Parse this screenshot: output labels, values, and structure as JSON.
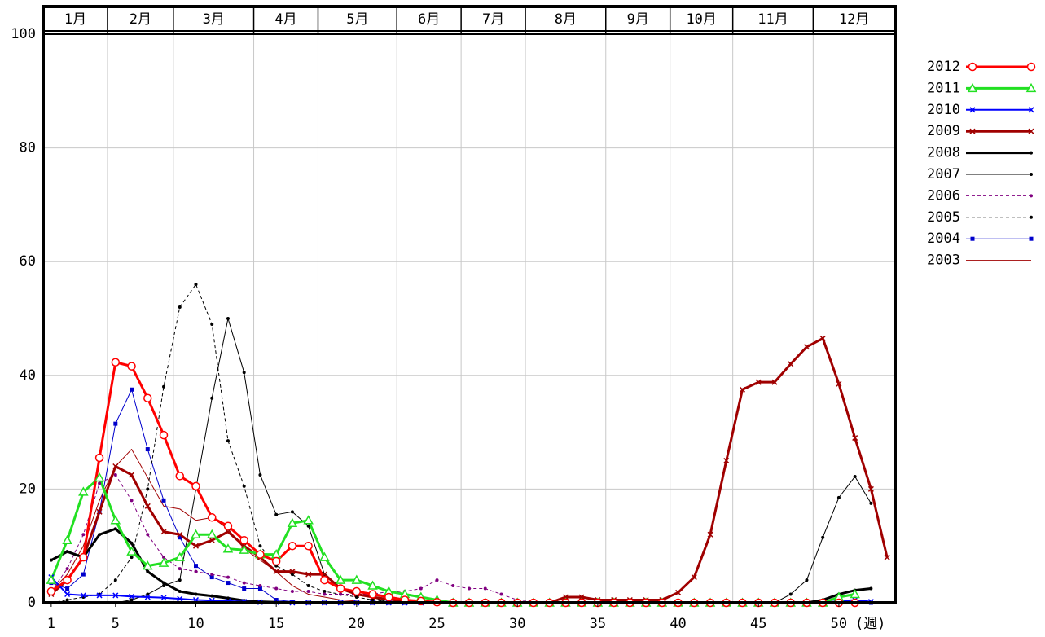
{
  "chart_data": {
    "type": "line",
    "x": [
      1,
      2,
      3,
      4,
      5,
      6,
      7,
      8,
      9,
      10,
      11,
      12,
      13,
      14,
      15,
      16,
      17,
      18,
      19,
      20,
      21,
      22,
      23,
      24,
      25,
      26,
      27,
      28,
      29,
      30,
      31,
      32,
      33,
      34,
      35,
      36,
      37,
      38,
      39,
      40,
      41,
      42,
      43,
      44,
      45,
      46,
      47,
      48,
      49,
      50,
      51,
      52,
      53
    ],
    "xlim": [
      0.5,
      53.5
    ],
    "xticks": [
      1,
      5,
      10,
      15,
      20,
      25,
      30,
      35,
      40,
      45,
      50
    ],
    "xlabel": "(週)",
    "ylim": [
      0,
      100
    ],
    "yticks": [
      0,
      20,
      40,
      60,
      80,
      100
    ],
    "grid": true,
    "months": [
      "1月",
      "2月",
      "3月",
      "4月",
      "5月",
      "6月",
      "7月",
      "8月",
      "9月",
      "10月",
      "11月",
      "12月"
    ],
    "month_edges": [
      4.5,
      8.6,
      13.6,
      17.6,
      22.5,
      26.5,
      30.5,
      35.5,
      39.5,
      43.4,
      48.4
    ],
    "legend": "right",
    "series": [
      {
        "name": "2012",
        "color": "#ff0000",
        "width": 3,
        "marker": "circle",
        "dash": false,
        "values": [
          2,
          4,
          8,
          25.5,
          42.3,
          41.6,
          36,
          29.5,
          22.3,
          20.5,
          15,
          13.5,
          11,
          8.5,
          7.3,
          10,
          10,
          4,
          2.5,
          2,
          1.5,
          1,
          0.5,
          0.3,
          0.1,
          0,
          0,
          0,
          0,
          0,
          0,
          0,
          0,
          0,
          0,
          0,
          0,
          0,
          0,
          0,
          0,
          0,
          0,
          0,
          0,
          0,
          0,
          0,
          0,
          0,
          0,
          null,
          null
        ]
      },
      {
        "name": "2011",
        "color": "#22e022",
        "width": 3,
        "marker": "triangle",
        "dash": false,
        "values": [
          4,
          11,
          19.5,
          22,
          14.5,
          9,
          6.5,
          7,
          8,
          12,
          12,
          9.5,
          9.3,
          8.5,
          8.5,
          14,
          14.5,
          8,
          4,
          4,
          3,
          2,
          1.5,
          1,
          0.5,
          0,
          0,
          0,
          0,
          0,
          0,
          0,
          0,
          0,
          0,
          0,
          0,
          0,
          0,
          0,
          0,
          0,
          0,
          0,
          0,
          0,
          0,
          0,
          0,
          1,
          1.5,
          null,
          null
        ]
      },
      {
        "name": "2010",
        "color": "#0000ff",
        "width": 2,
        "marker": "x",
        "dash": false,
        "values": [
          4.5,
          1.5,
          1.3,
          1.3,
          1.3,
          1.1,
          1,
          0.9,
          0.7,
          0.5,
          0.4,
          0.3,
          0.2,
          0.1,
          0.1,
          0,
          0,
          0,
          0,
          0,
          0,
          0,
          0,
          0,
          0,
          0,
          0,
          0,
          0,
          0,
          0,
          0,
          0,
          0,
          0,
          0,
          0,
          0,
          0,
          0,
          0,
          0,
          0,
          0,
          0,
          0,
          0,
          0,
          0,
          0.3,
          0.5,
          0.2,
          null
        ]
      },
      {
        "name": "2009",
        "color": "#a00000",
        "width": 3,
        "marker": "x",
        "dash": false,
        "values": [
          1.5,
          4,
          8,
          16,
          24,
          22.5,
          17,
          12.5,
          12,
          10,
          11,
          12.5,
          10,
          8,
          5.5,
          5.5,
          5,
          5,
          2.5,
          1.5,
          1,
          0.6,
          0.3,
          0.2,
          0.1,
          0,
          0,
          0,
          0,
          0,
          0,
          0,
          1,
          1,
          0.5,
          0.5,
          0.5,
          0.5,
          0.5,
          1.8,
          4.5,
          12,
          25,
          37.5,
          38.8,
          38.8,
          42,
          45,
          46.5,
          38.5,
          29,
          20,
          8
        ]
      },
      {
        "name": "2008",
        "color": "#000000",
        "width": 3,
        "marker": "dot",
        "dash": false,
        "values": [
          7.5,
          9,
          8,
          12,
          13,
          10.5,
          5.5,
          3.5,
          2,
          1.5,
          1.2,
          0.8,
          0.4,
          0.2,
          0.1,
          0,
          0,
          0,
          0,
          0,
          0,
          0,
          0,
          0,
          0,
          0,
          0,
          0,
          0,
          0,
          0,
          0,
          0,
          0,
          0,
          0,
          0,
          0,
          0,
          0,
          0,
          0,
          0,
          0,
          0,
          0,
          0,
          0,
          0.5,
          1.5,
          2.2,
          2.5,
          null
        ]
      },
      {
        "name": "2007",
        "color": "#000000",
        "width": 1,
        "marker": "dot",
        "dash": false,
        "values": [
          0,
          0,
          0,
          0,
          0,
          0.5,
          1.5,
          3,
          4,
          20,
          36,
          50,
          40.5,
          22.5,
          15.5,
          16,
          13.5,
          5,
          2.5,
          1.5,
          1,
          0,
          0,
          0,
          0,
          0,
          0,
          0,
          0,
          0,
          0,
          0,
          0,
          0,
          0,
          0,
          0,
          0,
          0,
          0,
          0,
          0,
          0,
          0,
          0,
          0,
          1.5,
          4,
          11.5,
          18.5,
          22.2,
          17.5,
          null
        ]
      },
      {
        "name": "2006",
        "color": "#800080",
        "width": 1,
        "marker": "dot",
        "dash": true,
        "values": [
          2,
          6,
          12,
          21,
          22.5,
          18,
          12,
          8,
          6,
          5.5,
          5,
          4.5,
          3.5,
          3,
          2.5,
          2,
          2,
          1.5,
          1.5,
          1.5,
          1.5,
          2,
          2,
          2.5,
          4,
          3,
          2.5,
          2.5,
          1.5,
          0.5,
          0.3,
          0,
          0,
          0,
          0,
          0,
          0,
          0,
          0,
          0,
          0,
          0,
          0,
          0,
          0,
          0,
          0,
          0,
          0,
          0,
          0,
          0,
          null
        ]
      },
      {
        "name": "2005",
        "color": "#000000",
        "width": 1,
        "marker": "dot",
        "dash": true,
        "values": [
          0,
          0.5,
          1,
          1.5,
          4,
          8,
          20,
          38,
          52,
          56,
          49,
          28.5,
          20.5,
          10,
          6.5,
          5,
          3,
          2,
          1.5,
          1,
          0.5,
          0.2,
          0,
          0,
          0,
          0,
          0,
          0,
          0,
          0,
          0,
          0,
          0,
          0,
          0,
          0,
          0,
          0,
          0,
          0,
          0,
          0,
          0,
          0,
          0,
          0,
          0,
          0,
          0,
          0,
          0,
          0,
          null
        ]
      },
      {
        "name": "2004",
        "color": "#0000cc",
        "width": 1,
        "marker": "square",
        "dash": false,
        "values": [
          3.5,
          2.5,
          5,
          16,
          31.5,
          37.5,
          27,
          18,
          11.5,
          6.5,
          4.5,
          3.5,
          2.5,
          2.5,
          0.5,
          0.2,
          0,
          0,
          0,
          0,
          0,
          0,
          0,
          0,
          0,
          0,
          0,
          0,
          0,
          0,
          0,
          0,
          0,
          0,
          0,
          0,
          0,
          0,
          0,
          0,
          0,
          0,
          0,
          0,
          0,
          0,
          0,
          0,
          0,
          0,
          0,
          0,
          null
        ]
      },
      {
        "name": "2003",
        "color": "#a00000",
        "width": 1,
        "marker": "none",
        "dash": false,
        "values": [
          2,
          5,
          10,
          18,
          24,
          27,
          22,
          17,
          16.5,
          14.5,
          15,
          13,
          9.5,
          7.5,
          5.5,
          3,
          1.5,
          1,
          0.5,
          0.3,
          0,
          0,
          0,
          0,
          0,
          0,
          0,
          0,
          0,
          0,
          0,
          0,
          0,
          0,
          0,
          0,
          0,
          0,
          0,
          0,
          0,
          0,
          0,
          0,
          0,
          0,
          0,
          0,
          0,
          0,
          0,
          0,
          null
        ]
      }
    ]
  }
}
